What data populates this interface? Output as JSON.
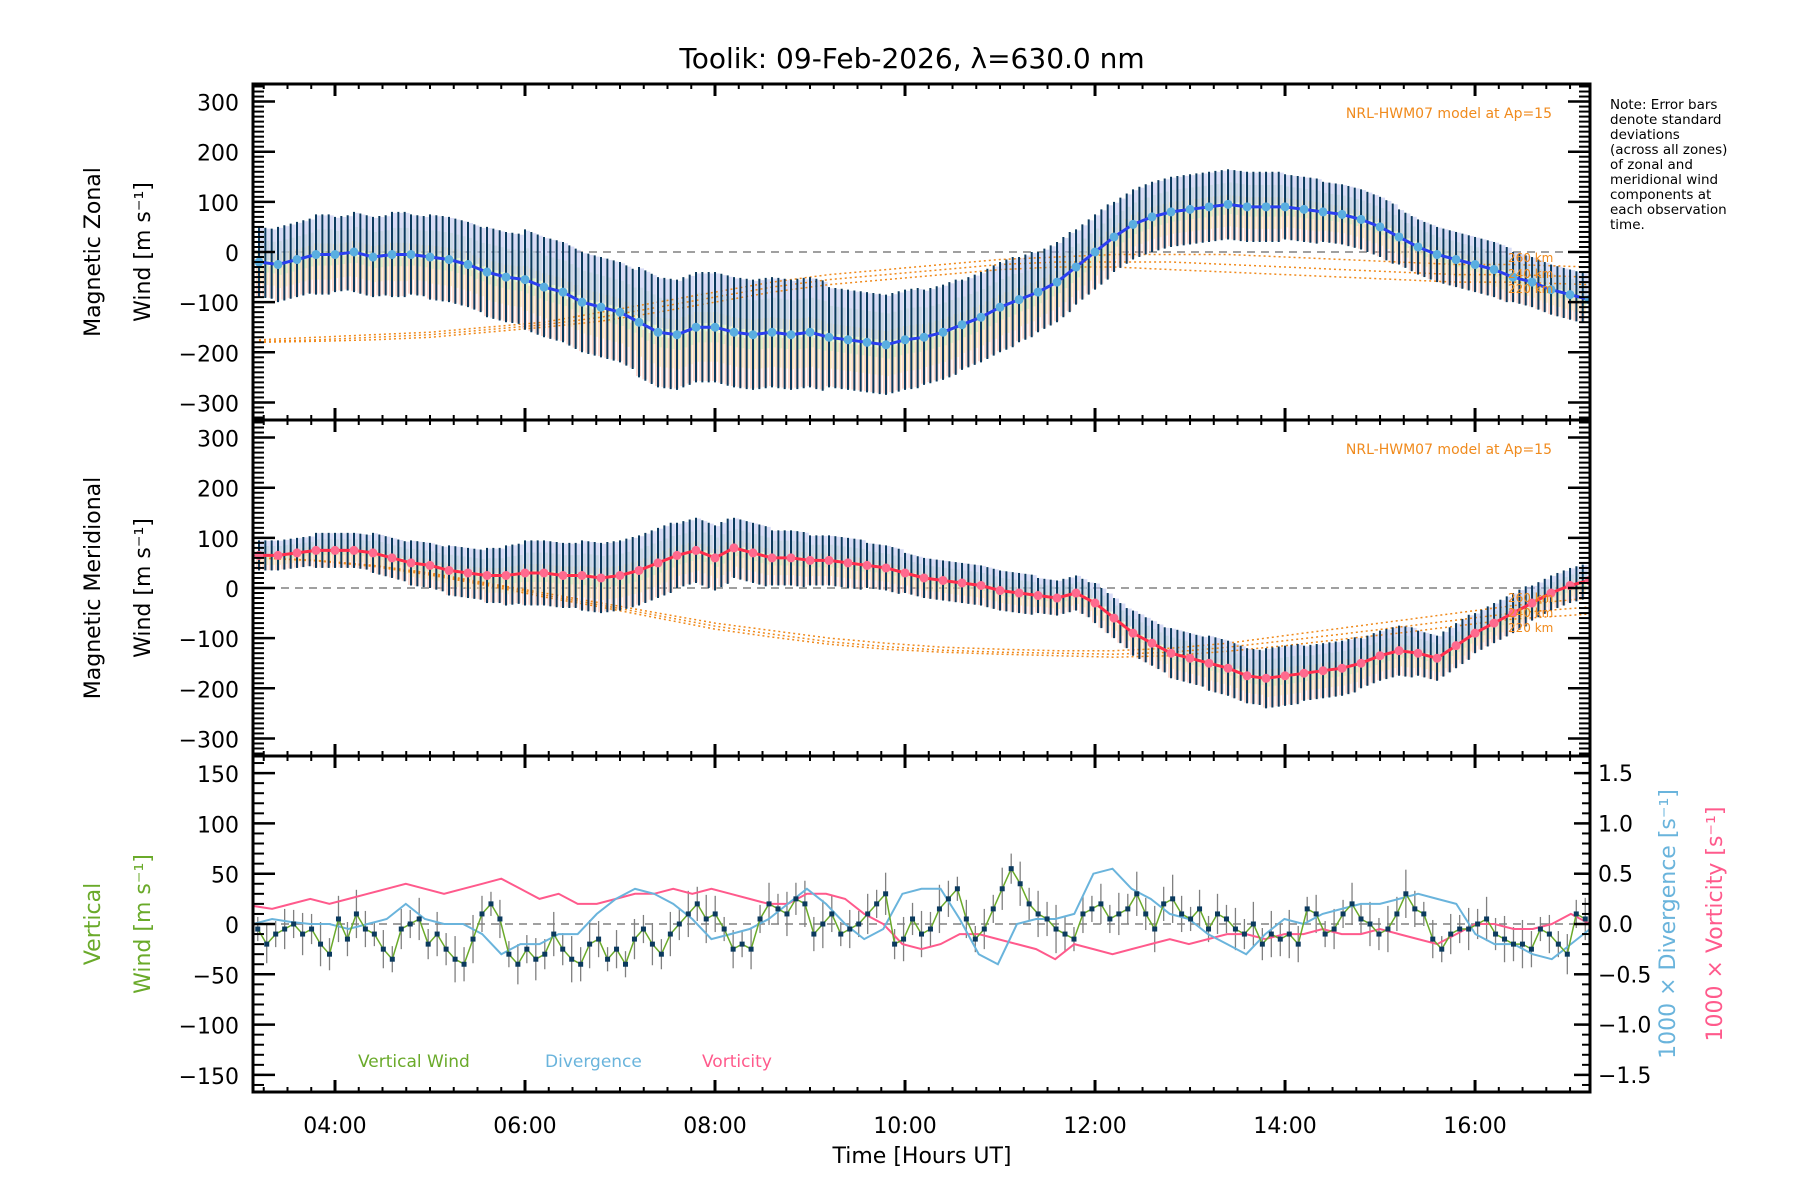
{
  "chart_data": [
    {
      "type": "line",
      "panel": "zonal",
      "title": "Toolik: 09-Feb-2026, λ=630.0 nm",
      "ylabel_line1": "Magnetic Zonal",
      "ylabel_line2": "Wind [m s⁻¹]",
      "ylim": [
        -335,
        335
      ],
      "yticks": [
        300,
        200,
        100,
        0,
        -100,
        -200,
        -300
      ],
      "model_label": "NRL-HWM07 model at Ap=15",
      "altitude_labels": [
        "260 km",
        "240 km",
        "220 km"
      ],
      "x": [
        3.2,
        3.4,
        3.6,
        3.8,
        4.0,
        4.2,
        4.4,
        4.6,
        4.8,
        5.0,
        5.2,
        5.4,
        5.6,
        5.8,
        6.0,
        6.2,
        6.4,
        6.6,
        6.8,
        7.0,
        7.2,
        7.4,
        7.6,
        7.8,
        8.0,
        8.2,
        8.4,
        8.6,
        8.8,
        9.0,
        9.2,
        9.4,
        9.6,
        9.8,
        10.0,
        10.2,
        10.4,
        10.6,
        10.8,
        11.0,
        11.2,
        11.4,
        11.6,
        11.8,
        12.0,
        12.2,
        12.4,
        12.6,
        12.8,
        13.0,
        13.2,
        13.4,
        13.6,
        13.8,
        14.0,
        14.2,
        14.4,
        14.6,
        14.8,
        15.0,
        15.2,
        15.4,
        15.6,
        15.8,
        16.0,
        16.2,
        16.4,
        16.6,
        16.8,
        17.0,
        17.2
      ],
      "series": [
        {
          "name": "Mean Zonal Wind",
          "color": "#2b3ff0",
          "values": [
            -20,
            -25,
            -15,
            -5,
            -5,
            0,
            -10,
            -5,
            -5,
            -10,
            -15,
            -25,
            -40,
            -50,
            -55,
            -70,
            -80,
            -100,
            -110,
            -120,
            -140,
            -160,
            -165,
            -150,
            -150,
            -160,
            -165,
            -160,
            -165,
            -160,
            -170,
            -175,
            -180,
            -185,
            -175,
            -170,
            -160,
            -145,
            -130,
            -110,
            -95,
            -80,
            -60,
            -30,
            0,
            30,
            55,
            70,
            80,
            85,
            90,
            95,
            90,
            90,
            90,
            85,
            80,
            75,
            65,
            50,
            30,
            10,
            -5,
            -15,
            -25,
            -35,
            -50,
            -60,
            -75,
            -85,
            -95
          ],
          "errors": [
            70,
            75,
            75,
            80,
            75,
            80,
            80,
            85,
            80,
            85,
            85,
            85,
            90,
            90,
            100,
            100,
            100,
            100,
            100,
            100,
            110,
            110,
            110,
            110,
            110,
            110,
            110,
            110,
            110,
            110,
            100,
            100,
            100,
            100,
            100,
            95,
            95,
            90,
            90,
            90,
            85,
            80,
            80,
            75,
            75,
            70,
            70,
            70,
            70,
            70,
            70,
            70,
            70,
            70,
            65,
            65,
            60,
            60,
            60,
            60,
            55,
            55,
            55,
            55,
            55,
            55,
            50,
            50,
            50,
            50,
            50
          ]
        },
        {
          "name": "HWM07 260 km",
          "color": "#f08a1c",
          "style": "dotted",
          "values": [
            -175,
            -170,
            -165,
            -160,
            -150,
            -140,
            -120,
            -100,
            -80,
            -60,
            -45,
            -35,
            -25,
            -15,
            -10,
            -5,
            -5,
            -5,
            -10,
            -15,
            -20,
            -25,
            -25,
            -30
          ]
        },
        {
          "name": "HWM07 240 km",
          "color": "#f08a1c",
          "style": "dotted",
          "values": [
            -178,
            -175,
            -170,
            -165,
            -155,
            -145,
            -130,
            -110,
            -90,
            -70,
            -55,
            -45,
            -35,
            -25,
            -20,
            -20,
            -20,
            -25,
            -30,
            -35,
            -40,
            -45,
            -45,
            -50
          ]
        },
        {
          "name": "HWM07 220 km",
          "color": "#f08a1c",
          "style": "dotted",
          "values": [
            -180,
            -178,
            -175,
            -170,
            -160,
            -150,
            -138,
            -120,
            -100,
            -80,
            -65,
            -55,
            -45,
            -35,
            -30,
            -30,
            -35,
            -40,
            -45,
            -50,
            -55,
            -60,
            -60,
            -65
          ]
        }
      ],
      "model_x": [
        3.2,
        3.8,
        4.4,
        5.0,
        5.6,
        6.2,
        6.8,
        7.4,
        8.0,
        8.6,
        9.2,
        9.8,
        10.4,
        11.0,
        11.6,
        12.2,
        12.8,
        13.4,
        14.0,
        14.6,
        15.2,
        15.8,
        16.4,
        17.2
      ]
    },
    {
      "type": "line",
      "panel": "meridional",
      "ylabel_line1": "Magnetic Meridional",
      "ylabel_line2": "Wind [m s⁻¹]",
      "ylim": [
        -335,
        335
      ],
      "yticks": [
        300,
        200,
        100,
        0,
        -100,
        -200,
        -300
      ],
      "model_label": "NRL-HWM07 model at Ap=15",
      "altitude_labels": [
        "260 km",
        "240 km",
        "220 km"
      ],
      "series": [
        {
          "name": "Mean Meridional Wind",
          "color": "#ff4f6e",
          "values": [
            65,
            65,
            70,
            75,
            75,
            75,
            70,
            60,
            50,
            45,
            35,
            30,
            25,
            25,
            30,
            30,
            25,
            25,
            20,
            25,
            35,
            50,
            65,
            75,
            60,
            80,
            70,
            60,
            60,
            55,
            55,
            50,
            45,
            40,
            30,
            20,
            15,
            10,
            5,
            -5,
            -10,
            -15,
            -20,
            -10,
            -30,
            -60,
            -90,
            -110,
            -130,
            -140,
            -150,
            -160,
            -175,
            -180,
            -175,
            -170,
            -165,
            -160,
            -150,
            -135,
            -125,
            -130,
            -140,
            -115,
            -90,
            -70,
            -50,
            -30,
            -10,
            5,
            15
          ],
          "errors": [
            30,
            30,
            30,
            35,
            35,
            35,
            40,
            40,
            45,
            45,
            50,
            50,
            55,
            60,
            65,
            65,
            65,
            70,
            70,
            70,
            70,
            70,
            65,
            65,
            65,
            60,
            60,
            55,
            55,
            50,
            50,
            50,
            45,
            45,
            40,
            40,
            40,
            40,
            40,
            40,
            40,
            35,
            35,
            35,
            40,
            40,
            45,
            45,
            50,
            50,
            55,
            55,
            55,
            60,
            60,
            55,
            55,
            55,
            50,
            50,
            50,
            45,
            45,
            45,
            40,
            40,
            40,
            35,
            35,
            35,
            35
          ]
        },
        {
          "name": "HWM07 260 km",
          "color": "#f08a1c",
          "style": "dotted",
          "values": [
            60,
            55,
            45,
            30,
            10,
            -10,
            -30,
            -50,
            -70,
            -85,
            -100,
            -110,
            -118,
            -122,
            -125,
            -125,
            -120,
            -110,
            -95,
            -80,
            -65,
            -50,
            -35,
            -20
          ]
        },
        {
          "name": "HWM07 240 km",
          "color": "#f08a1c",
          "style": "dotted",
          "values": [
            60,
            55,
            45,
            28,
            8,
            -14,
            -34,
            -55,
            -76,
            -92,
            -107,
            -117,
            -124,
            -128,
            -130,
            -132,
            -128,
            -118,
            -105,
            -92,
            -78,
            -64,
            -50,
            -38
          ]
        },
        {
          "name": "HWM07 220 km",
          "color": "#f08a1c",
          "style": "dotted",
          "values": [
            60,
            54,
            43,
            26,
            5,
            -18,
            -38,
            -60,
            -82,
            -98,
            -112,
            -122,
            -128,
            -132,
            -135,
            -138,
            -135,
            -126,
            -115,
            -102,
            -90,
            -76,
            -62,
            -52
          ]
        }
      ]
    },
    {
      "type": "line",
      "panel": "vertical",
      "ylabel_line1": "Vertical",
      "ylabel_line2": "Wind [m s⁻¹]",
      "ylim": [
        -167,
        167
      ],
      "yticks": [
        150,
        100,
        50,
        0,
        -50,
        -100,
        -150
      ],
      "y2label_div": "1000 × Divergence [s⁻¹]",
      "y2label_vort": "1000 × Vorticity [s⁻¹]",
      "y2lim": [
        -1.67,
        1.67
      ],
      "y2ticks": [
        "1.5",
        "1.0",
        "0.5",
        "0.0",
        "−0.5",
        "−1.0",
        "−1.5"
      ],
      "xlabel": "Time [Hours UT]",
      "xlim": [
        3.137,
        17.21
      ],
      "xticks": [
        "04:00",
        "06:00",
        "08:00",
        "10:00",
        "12:00",
        "14:00",
        "16:00"
      ],
      "xtick_values": [
        4,
        6,
        8,
        10,
        12,
        14,
        16
      ],
      "legend": [
        "Vertical Wind",
        "Divergence",
        "Vorticity"
      ],
      "legend_position": "bottom-left",
      "series": [
        {
          "name": "Vertical Wind",
          "color": "#6aaa2a",
          "values": [
            -5,
            -20,
            -10,
            -5,
            0,
            -10,
            -5,
            -20,
            -30,
            5,
            -15,
            10,
            -5,
            -10,
            -25,
            -35,
            -5,
            0,
            5,
            -20,
            -10,
            -25,
            -35,
            -40,
            -15,
            10,
            20,
            5,
            -30,
            -40,
            -25,
            -35,
            -30,
            -10,
            -25,
            -35,
            -40,
            -20,
            -15,
            -35,
            -25,
            -40,
            -15,
            -5,
            -20,
            -30,
            -10,
            0,
            10,
            20,
            5,
            10,
            -5,
            -25,
            -20,
            -25,
            5,
            20,
            15,
            10,
            25,
            20,
            -10,
            0,
            10,
            -10,
            -5,
            0,
            10,
            20,
            30,
            -20,
            -15,
            5,
            -10,
            -5,
            15,
            25,
            35,
            5,
            -15,
            -5,
            15,
            35,
            55,
            40,
            20,
            10,
            5,
            -5,
            -10,
            -15,
            10,
            15,
            20,
            5,
            10,
            15,
            30,
            10,
            -5,
            20,
            25,
            10,
            5,
            15,
            -5,
            10,
            5,
            -5,
            -10,
            0,
            -20,
            -10,
            -15,
            -10,
            -20,
            15,
            10,
            -10,
            -5,
            10,
            20,
            5,
            0,
            -10,
            -5,
            10,
            30,
            15,
            10,
            -15,
            -25,
            -10,
            -5,
            -5,
            0,
            5,
            -10,
            -15,
            -20,
            -20,
            -25,
            -5,
            -10,
            -20,
            -30,
            10,
            5
          ]
        },
        {
          "name": "Divergence",
          "color": "#6ab4dc",
          "values": [
            0.0,
            0.05,
            0.02,
            0.0,
            0.0,
            -0.05,
            0.0,
            0.05,
            0.2,
            0.05,
            0.0,
            0.0,
            -0.1,
            -0.3,
            -0.2,
            -0.2,
            -0.1,
            -0.1,
            0.1,
            0.25,
            0.35,
            0.3,
            0.2,
            0.05,
            -0.15,
            -0.1,
            -0.05,
            0.05,
            0.2,
            0.35,
            0.2,
            0.0,
            -0.15,
            -0.05,
            0.3,
            0.35,
            0.35,
            0.05,
            -0.3,
            -0.4,
            0.0,
            0.05,
            0.05,
            0.1,
            0.5,
            0.55,
            0.35,
            0.25,
            0.1,
            0.05,
            -0.1,
            -0.2,
            -0.3,
            -0.1,
            0.05,
            0.0,
            0.1,
            0.15,
            0.2,
            0.2,
            0.25,
            0.3,
            0.25,
            0.2,
            -0.1,
            -0.2,
            -0.2,
            -0.3,
            -0.35,
            -0.2,
            -0.05
          ]
        },
        {
          "name": "Vorticity",
          "color": "#ff5a8c",
          "values": [
            0.18,
            0.15,
            0.2,
            0.25,
            0.2,
            0.25,
            0.3,
            0.35,
            0.4,
            0.35,
            0.3,
            0.35,
            0.4,
            0.45,
            0.35,
            0.25,
            0.3,
            0.2,
            0.2,
            0.25,
            0.3,
            0.3,
            0.35,
            0.3,
            0.35,
            0.3,
            0.25,
            0.2,
            0.2,
            0.3,
            0.3,
            0.25,
            0.1,
            0.0,
            -0.2,
            -0.25,
            -0.2,
            -0.1,
            -0.1,
            -0.15,
            -0.2,
            -0.25,
            -0.35,
            -0.2,
            -0.25,
            -0.3,
            -0.25,
            -0.2,
            -0.15,
            -0.2,
            -0.15,
            -0.1,
            -0.1,
            -0.15,
            -0.1,
            -0.1,
            -0.05,
            -0.1,
            -0.1,
            -0.05,
            -0.1,
            -0.15,
            -0.2,
            -0.1,
            0.0,
            0.0,
            -0.05,
            -0.05,
            0.0,
            0.1,
            0.0
          ]
        }
      ]
    }
  ],
  "note": [
    "Note: Error bars",
    "denote standard",
    "deviations",
    "(across all zones)",
    "of zonal and",
    "meridional wind",
    "components at",
    "each observation",
    "time."
  ],
  "colors": {
    "error_bar": "#0b3a5e",
    "zonal_line": "#2b3ff0",
    "zonal_dot": "#5aaee0",
    "meridional_line": "#ff2e4c",
    "meridional_dot": "#ff6a8e",
    "model": "#f08a1c",
    "vertical": "#6aaa2a",
    "divergence": "#6ab4dc",
    "vorticity": "#ff5a8c",
    "zone_pink": "#f8b8a8",
    "zone_yellow": "#f8e4a8",
    "zone_green": "#c8f0c0",
    "zone_blue": "#b8c0ee",
    "zero_line": "#808080"
  }
}
